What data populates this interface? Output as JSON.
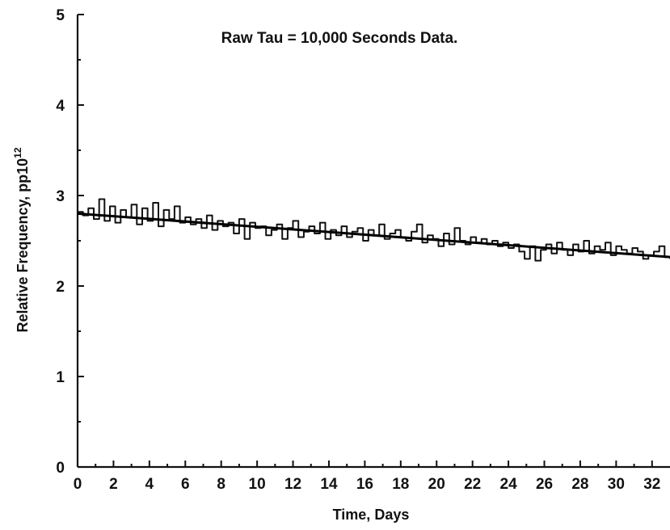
{
  "chart_data": {
    "type": "line",
    "title": "Raw Tau = 10,000 Seconds Data.",
    "xlabel": "Time, Days",
    "ylabel_main": "Relative Frequency, pp10",
    "ylabel_sup": "12",
    "xlim": [
      0,
      33
    ],
    "ylim": [
      0,
      5
    ],
    "xticks": [
      "0",
      "2",
      "4",
      "6",
      "8",
      "10",
      "12",
      "14",
      "16",
      "18",
      "20",
      "22",
      "24",
      "26",
      "28",
      "30",
      "32"
    ],
    "yticks": [
      "0",
      "1",
      "2",
      "3",
      "4",
      "5"
    ],
    "grid": false,
    "series": [
      {
        "role": "raw data",
        "x": [
          0,
          0.3,
          0.6,
          0.9,
          1.2,
          1.5,
          1.8,
          2.1,
          2.4,
          2.7,
          3.0,
          3.3,
          3.6,
          3.9,
          4.2,
          4.5,
          4.8,
          5.1,
          5.4,
          5.7,
          6.0,
          6.3,
          6.6,
          6.9,
          7.2,
          7.5,
          7.8,
          8.1,
          8.4,
          8.7,
          9.0,
          9.3,
          9.6,
          9.9,
          10.2,
          10.5,
          10.8,
          11.1,
          11.4,
          11.7,
          12.0,
          12.3,
          12.6,
          12.9,
          13.2,
          13.5,
          13.8,
          14.1,
          14.4,
          14.7,
          15.0,
          15.3,
          15.6,
          15.9,
          16.2,
          16.5,
          16.8,
          17.1,
          17.4,
          17.7,
          18.0,
          18.3,
          18.6,
          18.9,
          19.2,
          19.5,
          19.8,
          20.1,
          20.4,
          20.7,
          21.0,
          21.3,
          21.6,
          21.9,
          22.2,
          22.5,
          22.8,
          23.1,
          23.4,
          23.7,
          24.0,
          24.3,
          24.6,
          24.9,
          25.2,
          25.5,
          25.8,
          26.1,
          26.4,
          26.7,
          27.0,
          27.3,
          27.6,
          27.9,
          28.2,
          28.5,
          28.8,
          29.1,
          29.4,
          29.7,
          30.0,
          30.3,
          30.6,
          30.9,
          31.2,
          31.5,
          31.8,
          32.1,
          32.4,
          32.7,
          33.0
        ],
        "y": [
          2.82,
          2.78,
          2.86,
          2.74,
          2.96,
          2.72,
          2.88,
          2.7,
          2.84,
          2.76,
          2.9,
          2.68,
          2.86,
          2.72,
          2.92,
          2.66,
          2.84,
          2.74,
          2.88,
          2.7,
          2.76,
          2.68,
          2.74,
          2.64,
          2.78,
          2.62,
          2.72,
          2.66,
          2.7,
          2.58,
          2.74,
          2.52,
          2.7,
          2.64,
          2.66,
          2.56,
          2.62,
          2.68,
          2.52,
          2.64,
          2.72,
          2.54,
          2.6,
          2.66,
          2.58,
          2.7,
          2.52,
          2.62,
          2.56,
          2.66,
          2.54,
          2.6,
          2.64,
          2.5,
          2.62,
          2.56,
          2.68,
          2.52,
          2.58,
          2.62,
          2.54,
          2.5,
          2.6,
          2.68,
          2.48,
          2.56,
          2.52,
          2.44,
          2.58,
          2.46,
          2.64,
          2.5,
          2.46,
          2.54,
          2.48,
          2.52,
          2.46,
          2.5,
          2.44,
          2.48,
          2.42,
          2.46,
          2.38,
          2.3,
          2.44,
          2.28,
          2.4,
          2.46,
          2.36,
          2.48,
          2.4,
          2.34,
          2.46,
          2.38,
          2.5,
          2.36,
          2.44,
          2.4,
          2.48,
          2.34,
          2.44,
          2.4,
          2.36,
          2.42,
          2.38,
          2.3,
          2.34,
          2.38,
          2.44,
          2.32,
          2.3
        ]
      },
      {
        "role": "linear fit",
        "x": [
          0,
          33
        ],
        "y": [
          2.8,
          2.32
        ]
      }
    ]
  }
}
